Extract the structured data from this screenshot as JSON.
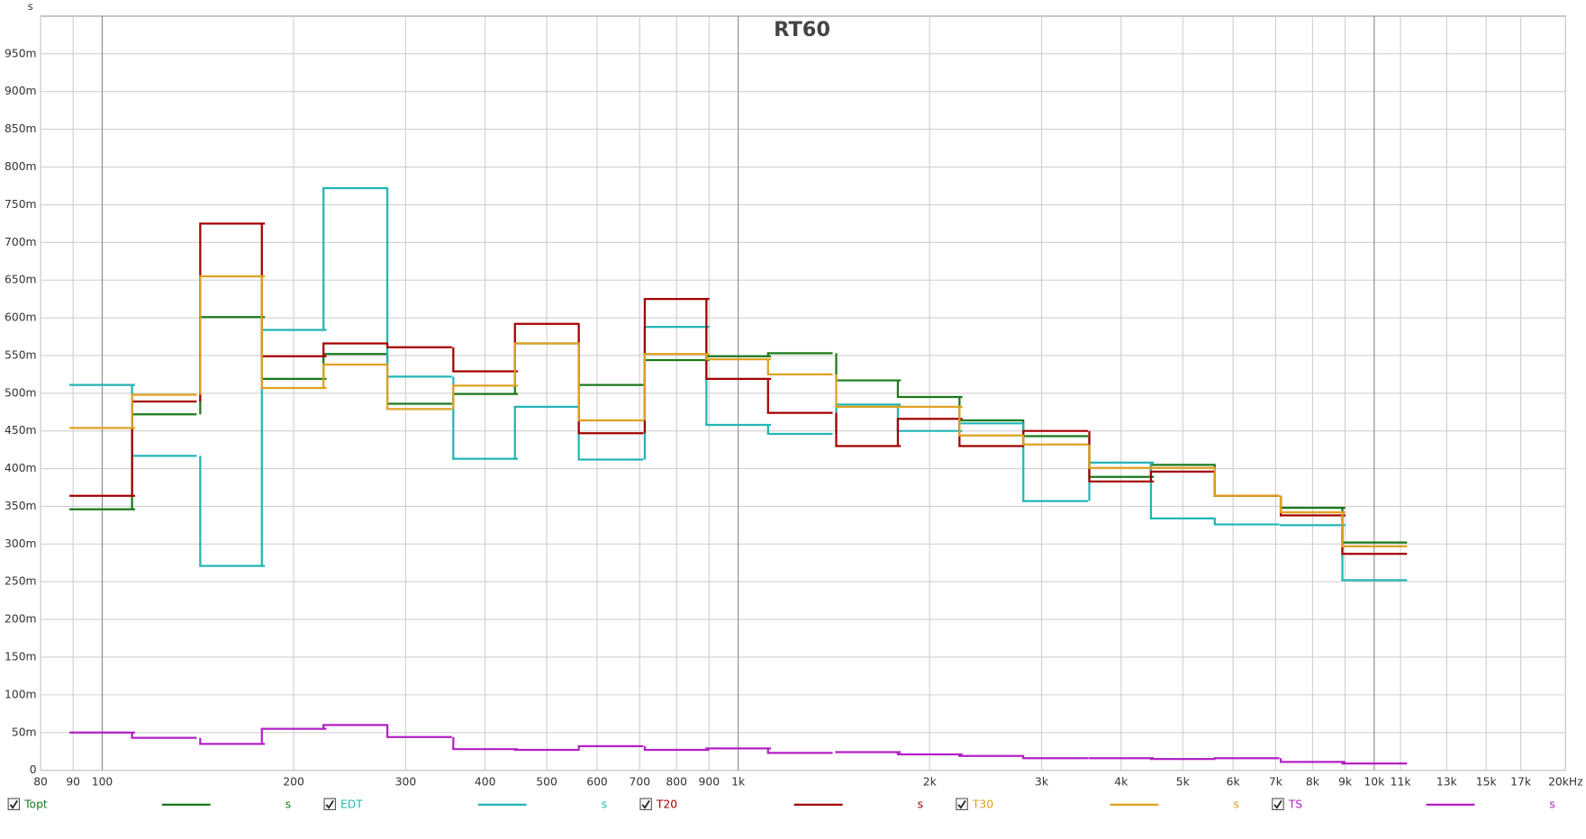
{
  "chart_data": {
    "type": "line",
    "drawstyle": "steps-mid",
    "title": "RT60",
    "y_axis_label": "s",
    "xscale": "log",
    "grid": true,
    "legend": "bottom",
    "xlim": [
      80,
      20000
    ],
    "ylim": [
      0,
      1
    ],
    "xticks": [
      80,
      90,
      100,
      200,
      300,
      400,
      500,
      600,
      700,
      800,
      900,
      {
        "value": 1000,
        "label": "1k"
      },
      {
        "value": 2000,
        "label": "2k"
      },
      {
        "value": 3000,
        "label": "3k"
      },
      {
        "value": 4000,
        "label": "4k"
      },
      {
        "value": 5000,
        "label": "5k"
      },
      {
        "value": 6000,
        "label": "6k"
      },
      {
        "value": 7000,
        "label": "7k"
      },
      {
        "value": 8000,
        "label": "8k"
      },
      {
        "value": 9000,
        "label": "9k"
      },
      {
        "value": 10000,
        "label": "10k"
      },
      {
        "value": 11000,
        "label": "11k"
      },
      {
        "value": 13000,
        "label": "13k"
      },
      {
        "value": 15000,
        "label": "15k"
      },
      {
        "value": 17000,
        "label": "17k"
      },
      {
        "value": 20000,
        "label": "20kHz"
      }
    ],
    "yticks": [
      0,
      {
        "value": 0.05,
        "label": "50m"
      },
      {
        "value": 0.1,
        "label": "100m"
      },
      {
        "value": 0.15,
        "label": "150m"
      },
      {
        "value": 0.2,
        "label": "200m"
      },
      {
        "value": 0.25,
        "label": "250m"
      },
      {
        "value": 0.3,
        "label": "300m"
      },
      {
        "value": 0.35,
        "label": "350m"
      },
      {
        "value": 0.4,
        "label": "400m"
      },
      {
        "value": 0.45,
        "label": "450m"
      },
      {
        "value": 0.5,
        "label": "500m"
      },
      {
        "value": 0.55,
        "label": "550m"
      },
      {
        "value": 0.6,
        "label": "600m"
      },
      {
        "value": 0.65,
        "label": "650m"
      },
      {
        "value": 0.7,
        "label": "700m"
      },
      {
        "value": 0.75,
        "label": "750m"
      },
      {
        "value": 0.8,
        "label": "800m"
      },
      {
        "value": 0.85,
        "label": "850m"
      },
      {
        "value": 0.9,
        "label": "900m"
      },
      {
        "value": 0.95,
        "label": "950m"
      }
    ],
    "x": [
      100,
      125,
      160,
      200,
      250,
      315,
      400,
      500,
      630,
      800,
      1000,
      1250,
      1600,
      2000,
      2500,
      3150,
      4000,
      5000,
      6300,
      8000,
      10000
    ],
    "series": [
      {
        "name": "Topt",
        "unit": "s",
        "color": "#1a7a1a",
        "values": [
          0.346,
          0.472,
          0.601,
          0.519,
          0.552,
          0.486,
          0.499,
          0.566,
          0.511,
          0.544,
          0.549,
          0.553,
          0.517,
          0.495,
          0.464,
          0.443,
          0.389,
          0.405,
          0.364,
          0.348,
          0.302
        ]
      },
      {
        "name": "EDT",
        "unit": "s",
        "color": "#22b5b5",
        "values": [
          0.511,
          0.417,
          0.271,
          0.584,
          0.772,
          0.522,
          0.413,
          0.482,
          0.412,
          0.588,
          0.458,
          0.446,
          0.485,
          0.45,
          0.46,
          0.357,
          0.408,
          0.334,
          0.326,
          0.325,
          0.252
        ]
      },
      {
        "name": "T20",
        "unit": "s",
        "color": "#a30000",
        "values": [
          0.364,
          0.489,
          0.725,
          0.549,
          0.566,
          0.561,
          0.529,
          0.592,
          0.447,
          0.625,
          0.519,
          0.474,
          0.43,
          0.466,
          0.43,
          0.45,
          0.383,
          0.396,
          0.364,
          0.338,
          0.287
        ]
      },
      {
        "name": "T30",
        "unit": "s",
        "color": "#e0a020",
        "values": [
          0.454,
          0.498,
          0.655,
          0.507,
          0.538,
          0.479,
          0.51,
          0.566,
          0.464,
          0.552,
          0.545,
          0.525,
          0.482,
          0.482,
          0.444,
          0.432,
          0.401,
          0.401,
          0.364,
          0.342,
          0.297
        ]
      },
      {
        "name": "TS",
        "unit": "s",
        "color": "#b321c4",
        "values": [
          0.05,
          0.043,
          0.035,
          0.055,
          0.06,
          0.044,
          0.028,
          0.027,
          0.032,
          0.027,
          0.029,
          0.023,
          0.024,
          0.021,
          0.019,
          0.016,
          0.016,
          0.015,
          0.016,
          0.011,
          0.009
        ]
      }
    ]
  }
}
